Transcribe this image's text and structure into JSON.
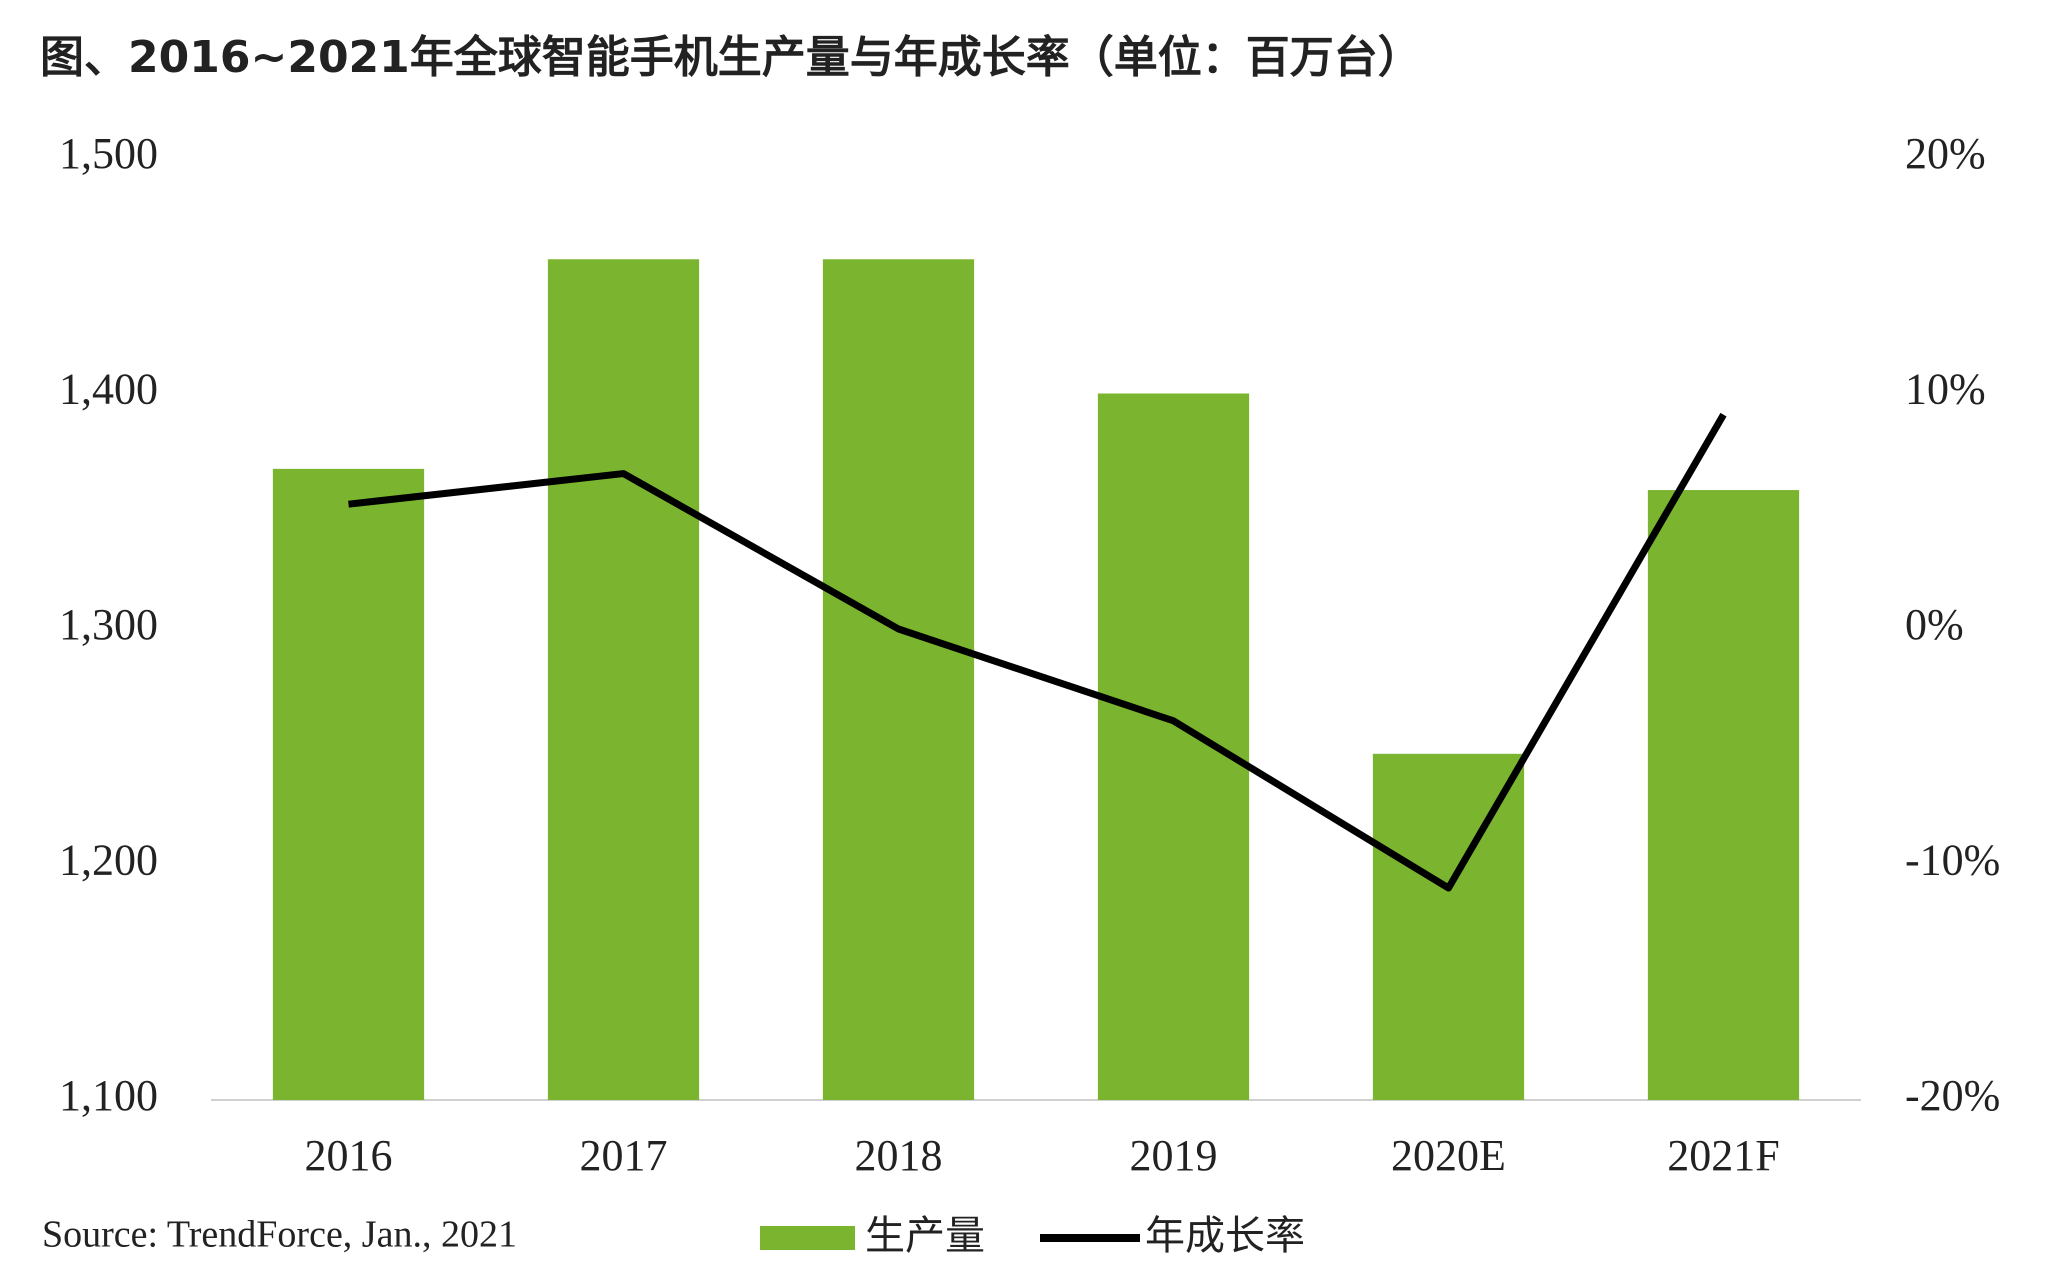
{
  "chart_data": {
    "type": "bar",
    "title": "图、2016~2021年全球智能手机生产量与年成长率（单位：百万台）",
    "source": "Source: TrendForce, Jan., 2021",
    "categories": [
      "2016",
      "2017",
      "2018",
      "2019",
      "2020E",
      "2021F"
    ],
    "series": [
      {
        "name": "生产量",
        "type": "bar",
        "color": "#7bb52f",
        "values": [
          1368,
          1457,
          1457,
          1400,
          1247,
          1359
        ]
      },
      {
        "name": "年成长率",
        "type": "line",
        "axis": "y2",
        "color": "#000000",
        "values": [
          5.3,
          6.6,
          0,
          -3.9,
          -11,
          9.1
        ]
      }
    ],
    "ylim": [
      1100,
      1500
    ],
    "yticks": [
      {
        "value": 1100,
        "label": "1,100"
      },
      {
        "value": 1200,
        "label": "1,200"
      },
      {
        "value": 1300,
        "label": "1,300"
      },
      {
        "value": 1400,
        "label": "1,400"
      },
      {
        "value": 1500,
        "label": "1,500"
      }
    ],
    "y2lim": [
      -20,
      20
    ],
    "y2ticks": [
      {
        "value": -20,
        "label": "-20%"
      },
      {
        "value": -10,
        "label": "-10%"
      },
      {
        "value": 0,
        "label": "0%"
      },
      {
        "value": 10,
        "label": "10%"
      },
      {
        "value": 20,
        "label": "20%"
      }
    ],
    "grid": false,
    "legend": "bottom"
  }
}
